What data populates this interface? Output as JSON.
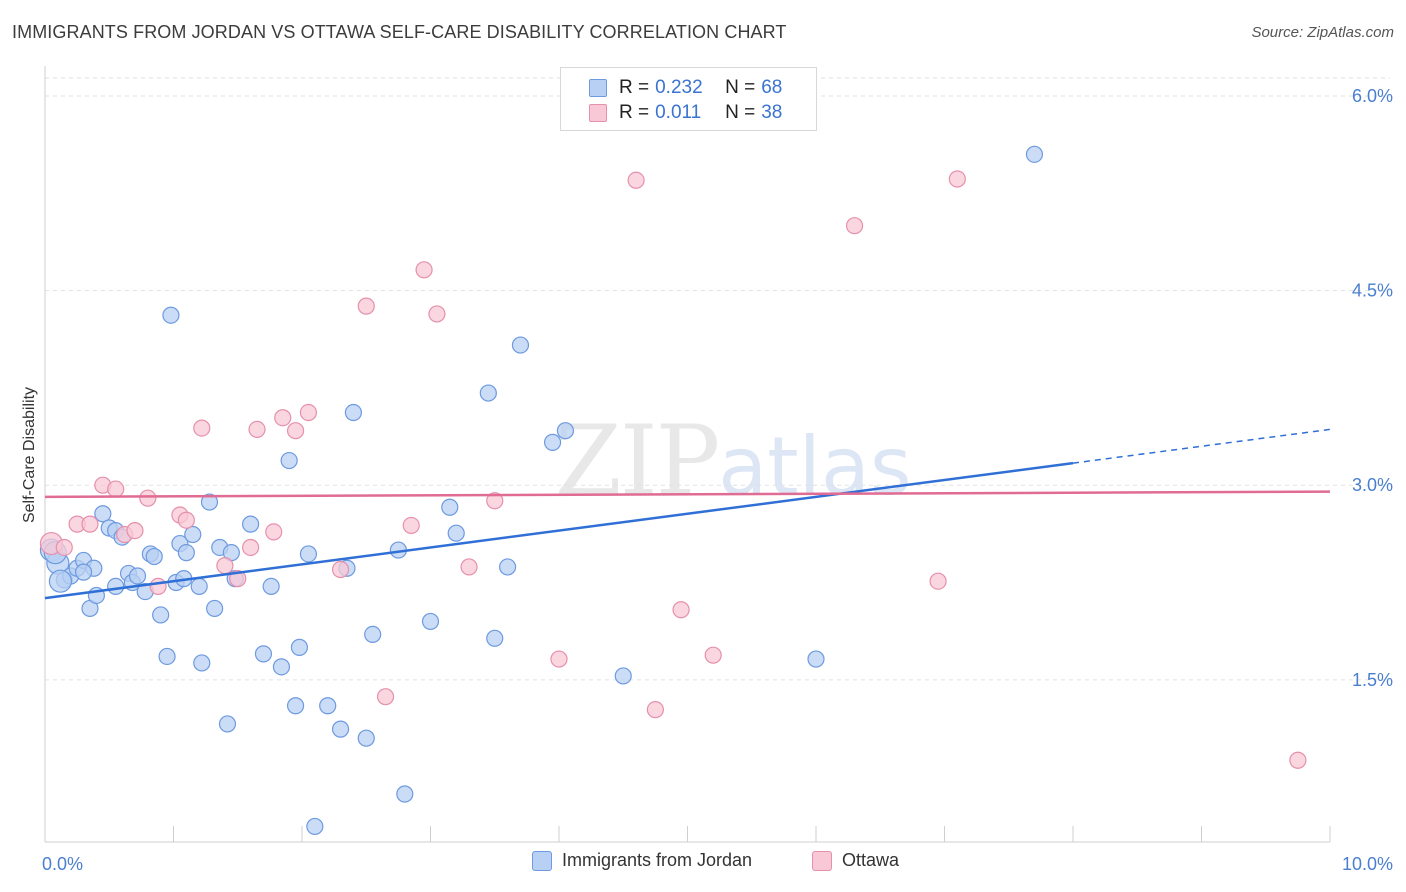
{
  "title": "IMMIGRANTS FROM JORDAN VS OTTAWA SELF-CARE DISABILITY CORRELATION CHART",
  "source": "Source: ZipAtlas.com",
  "watermark": {
    "zip": "ZIP",
    "atlas": "atlas"
  },
  "legend": {
    "r_label": "R =",
    "n_label": "N =",
    "rows": [
      {
        "r": "0.232",
        "n": "68",
        "fill": "#b8d0f3",
        "stroke": "#6d9ae0"
      },
      {
        "r": "0.011",
        "n": "38",
        "fill": "#f8c8d6",
        "stroke": "#e690ab"
      }
    ]
  },
  "bottom_legend": [
    {
      "label": "Immigrants from Jordan",
      "fill": "#b8d0f3",
      "stroke": "#6d9ae0"
    },
    {
      "label": "Ottawa",
      "fill": "#f8c8d6",
      "stroke": "#e690ab"
    }
  ],
  "chart_data": {
    "type": "scatter",
    "ylabel": "Self-Care Disability",
    "xlabel": "",
    "xlim": [
      0,
      10
    ],
    "ylim": [
      0.25,
      6.2
    ],
    "x_ticks": {
      "labels": [
        "0.0%",
        "10.0%"
      ],
      "values": [
        0,
        10
      ]
    },
    "y_ticks": {
      "labels": [
        "1.5%",
        "3.0%",
        "4.5%",
        "6.0%"
      ],
      "values": [
        1.5,
        3.0,
        4.5,
        6.0
      ]
    },
    "grid": "horizontal dashed",
    "series": [
      {
        "name": "Immigrants from Jordan",
        "color": "#6d9ae0",
        "fill": "#b8d0f3",
        "trend": {
          "x0": 0,
          "y0": 2.13,
          "x1": 8.0,
          "y1": 3.17,
          "dash_to": 10,
          "dash_y": 3.43,
          "color": "#2f6fd6"
        },
        "points": [
          [
            0.05,
            2.5
          ],
          [
            0.1,
            2.4
          ],
          [
            0.15,
            2.27
          ],
          [
            0.2,
            2.3
          ],
          [
            0.25,
            2.36
          ],
          [
            0.3,
            2.42
          ],
          [
            0.35,
            2.05
          ],
          [
            0.38,
            2.36
          ],
          [
            0.4,
            2.15
          ],
          [
            0.45,
            2.78
          ],
          [
            0.5,
            2.67
          ],
          [
            0.55,
            2.65
          ],
          [
            0.6,
            2.6
          ],
          [
            0.65,
            2.32
          ],
          [
            0.68,
            2.25
          ],
          [
            0.72,
            2.3
          ],
          [
            0.78,
            2.18
          ],
          [
            0.82,
            2.47
          ],
          [
            0.85,
            2.45
          ],
          [
            0.9,
            2.0
          ],
          [
            0.95,
            1.68
          ],
          [
            0.98,
            4.31
          ],
          [
            1.02,
            2.25
          ],
          [
            1.05,
            2.55
          ],
          [
            1.1,
            2.48
          ],
          [
            1.15,
            2.62
          ],
          [
            1.2,
            2.22
          ],
          [
            1.22,
            1.63
          ],
          [
            1.28,
            2.87
          ],
          [
            1.32,
            2.05
          ],
          [
            1.36,
            2.52
          ],
          [
            1.42,
            1.16
          ],
          [
            1.45,
            2.48
          ],
          [
            1.48,
            2.28
          ],
          [
            1.6,
            2.7
          ],
          [
            1.7,
            1.7
          ],
          [
            1.76,
            2.22
          ],
          [
            1.84,
            1.6
          ],
          [
            1.9,
            3.19
          ],
          [
            1.95,
            1.3
          ],
          [
            1.98,
            1.75
          ],
          [
            2.05,
            2.47
          ],
          [
            2.1,
            0.37
          ],
          [
            2.2,
            1.3
          ],
          [
            2.3,
            1.12
          ],
          [
            2.4,
            3.56
          ],
          [
            2.5,
            1.05
          ],
          [
            2.55,
            1.85
          ],
          [
            2.75,
            2.5
          ],
          [
            2.8,
            0.62
          ],
          [
            3.0,
            1.95
          ],
          [
            3.15,
            2.83
          ],
          [
            3.2,
            2.63
          ],
          [
            3.45,
            3.71
          ],
          [
            3.5,
            1.82
          ],
          [
            3.6,
            2.37
          ],
          [
            3.7,
            4.08
          ],
          [
            3.95,
            3.33
          ],
          [
            4.05,
            3.42
          ],
          [
            4.5,
            1.53
          ],
          [
            6.0,
            1.66
          ],
          [
            7.7,
            5.55
          ],
          [
            0.08,
            2.48
          ],
          [
            0.12,
            2.26
          ],
          [
            0.3,
            2.33
          ],
          [
            0.55,
            2.22
          ],
          [
            1.08,
            2.28
          ],
          [
            2.35,
            2.36
          ]
        ]
      },
      {
        "name": "Ottawa",
        "color": "#e690ab",
        "fill": "#f8c8d6",
        "trend": {
          "x0": 0,
          "y0": 2.91,
          "x1": 10,
          "y1": 2.95,
          "color": "#e06b93"
        },
        "points": [
          [
            0.05,
            2.55
          ],
          [
            0.15,
            2.52
          ],
          [
            0.25,
            2.7
          ],
          [
            0.35,
            2.7
          ],
          [
            0.45,
            3.0
          ],
          [
            0.55,
            2.97
          ],
          [
            0.62,
            2.62
          ],
          [
            0.7,
            2.65
          ],
          [
            0.8,
            2.9
          ],
          [
            0.88,
            2.22
          ],
          [
            1.05,
            2.77
          ],
          [
            1.1,
            2.73
          ],
          [
            1.22,
            3.44
          ],
          [
            1.4,
            2.38
          ],
          [
            1.5,
            2.28
          ],
          [
            1.6,
            2.52
          ],
          [
            1.65,
            3.43
          ],
          [
            1.78,
            2.64
          ],
          [
            1.85,
            3.52
          ],
          [
            1.95,
            3.42
          ],
          [
            2.05,
            3.56
          ],
          [
            2.3,
            2.35
          ],
          [
            2.5,
            4.38
          ],
          [
            2.65,
            1.37
          ],
          [
            2.85,
            2.69
          ],
          [
            2.95,
            4.66
          ],
          [
            3.05,
            4.32
          ],
          [
            3.3,
            2.37
          ],
          [
            3.5,
            2.88
          ],
          [
            4.0,
            1.66
          ],
          [
            4.6,
            5.35
          ],
          [
            4.75,
            1.27
          ],
          [
            4.95,
            2.04
          ],
          [
            5.2,
            1.69
          ],
          [
            6.3,
            5.0
          ],
          [
            6.95,
            2.26
          ],
          [
            7.1,
            5.36
          ],
          [
            9.75,
            0.88
          ]
        ]
      }
    ]
  }
}
